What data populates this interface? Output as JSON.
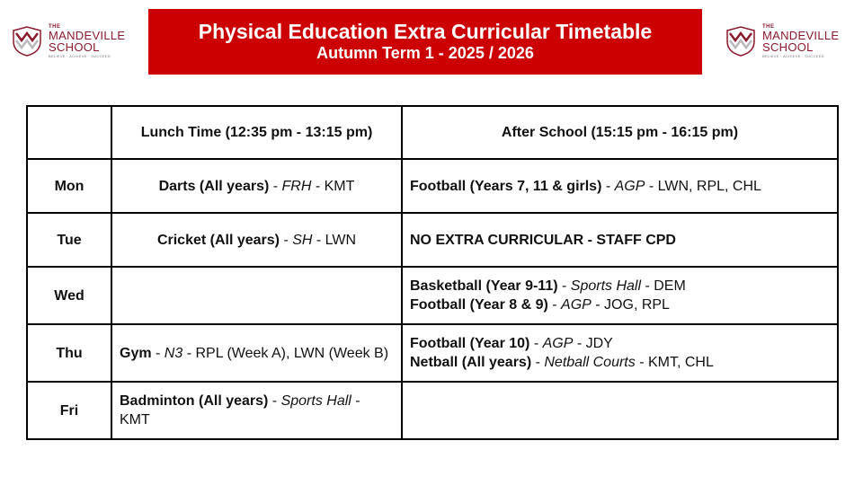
{
  "header": {
    "title": "Physical Education Extra Curricular Timetable",
    "subtitle": "Autumn Term 1 - 2025 / 2026"
  },
  "logo": {
    "the": "THE",
    "name_line1": "MANDEVILLE",
    "name_line2": "SCHOOL",
    "tagline": "BELIEVE · ACHIEVE · SUCCEED",
    "color": "#8a1a2e"
  },
  "table": {
    "headers": [
      "",
      "Lunch Time (12:35 pm - 13:15 pm)",
      "After School (15:15 pm - 16:15 pm)"
    ],
    "rows": [
      {
        "day": "Mon",
        "lunch": [
          {
            "activity": "Darts (All years)",
            "sep1": " - ",
            "location": "FRH",
            "sep2": " - ",
            "staff": "KMT"
          }
        ],
        "after": [
          {
            "activity": "Football (Years 7, 11 & girls)",
            "sep1": " - ",
            "location": "AGP",
            "sep2": " - ",
            "staff": "LWN, RPL, CHL"
          }
        ]
      },
      {
        "day": "Tue",
        "lunch": [
          {
            "activity": "Cricket (All years)",
            "sep1": " - ",
            "location": "SH",
            "sep2": " - ",
            "staff": "LWN"
          }
        ],
        "after_note": "NO EXTRA CURRICULAR - STAFF CPD"
      },
      {
        "day": "Wed",
        "lunch": [],
        "after": [
          {
            "activity": "Basketball (Year 9-11)",
            "sep1": " - ",
            "location": "Sports Hall",
            "sep2": " - ",
            "staff": "DEM"
          },
          {
            "activity": "Football (Year 8 & 9)",
            "sep1": " - ",
            "location": "AGP",
            "sep2": " - ",
            "staff": "JOG, RPL"
          }
        ]
      },
      {
        "day": "Thu",
        "lunch": [
          {
            "activity": "Gym",
            "sep1": " - ",
            "location": "N3",
            "sep2": " - ",
            "staff": "RPL (Week A), LWN (Week B)"
          }
        ],
        "after": [
          {
            "activity": "Football (Year 10)",
            "sep1": " - ",
            "location": "AGP",
            "sep2": " - ",
            "staff": "JDY"
          },
          {
            "activity": "Netball (All years)",
            "sep1": " - ",
            "location": "Netball Courts",
            "sep2": " - ",
            "staff": "KMT, CHL"
          }
        ]
      },
      {
        "day": "Fri",
        "lunch": [
          {
            "activity": "Badminton (All years)",
            "sep1": " - ",
            "location": "Sports Hall",
            "sep2": " - ",
            "staff": "KMT"
          }
        ],
        "after": []
      }
    ]
  }
}
